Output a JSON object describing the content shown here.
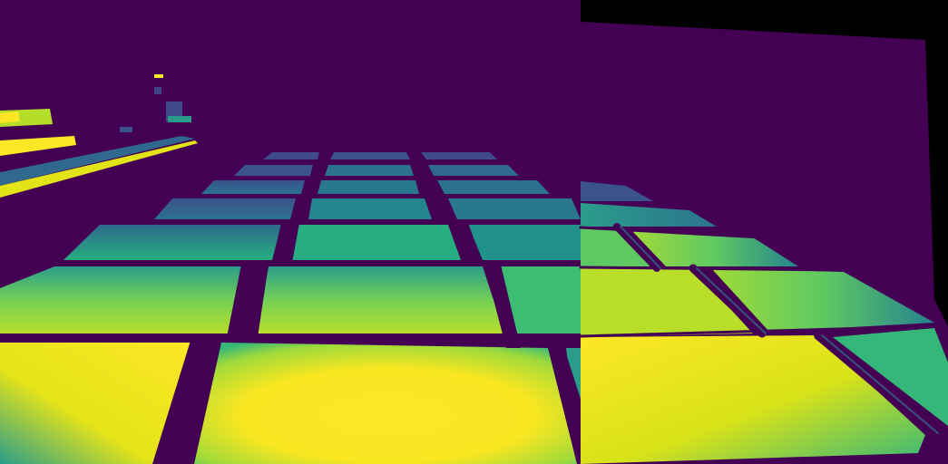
{
  "image": {
    "subject": "thermal panels",
    "colormap": "viridis"
  },
  "colors": {
    "background": "#000000",
    "cold": "#440154",
    "cool": "#31688e",
    "mid": "#21918c",
    "warm": "#5ec962",
    "hot": "#fde725"
  },
  "panels": [
    {
      "id": "left",
      "rows": 7
    },
    {
      "id": "right",
      "rows": 4
    }
  ]
}
